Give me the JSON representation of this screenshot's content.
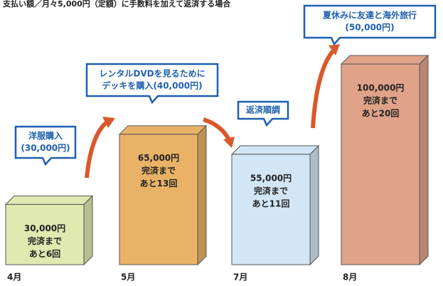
{
  "chart_data": {
    "type": "bar",
    "title": "支払い額／月々5,000円（定額）に手数料を加えて返済する場合",
    "categories": [
      "4月",
      "5月",
      "7月",
      "8月"
    ],
    "values": [
      30000,
      65000,
      55000,
      100000
    ],
    "value_labels": [
      "30,000円",
      "65,000円",
      "55,000円",
      "100,000円"
    ],
    "remaining_labels": [
      "完済まで",
      "完済まで",
      "完済まで",
      "完済まで"
    ],
    "remaining_counts": [
      "あと6回",
      "あと13回",
      "あと11回",
      "あと20回"
    ],
    "colors": [
      "#dfe9b0",
      "#e9b267",
      "#d3e6f6",
      "#e0a389"
    ],
    "annotations": [
      {
        "lines": [
          "洋服購入",
          "(30,000円)"
        ]
      },
      {
        "lines": [
          "レンタルDVDを見るために",
          "デッキを購入(40,000円)"
        ]
      },
      {
        "lines": [
          "返済順調"
        ]
      },
      {
        "lines": [
          "夏休みに友達と海外旅行",
          "(50,000円)"
        ]
      }
    ]
  }
}
